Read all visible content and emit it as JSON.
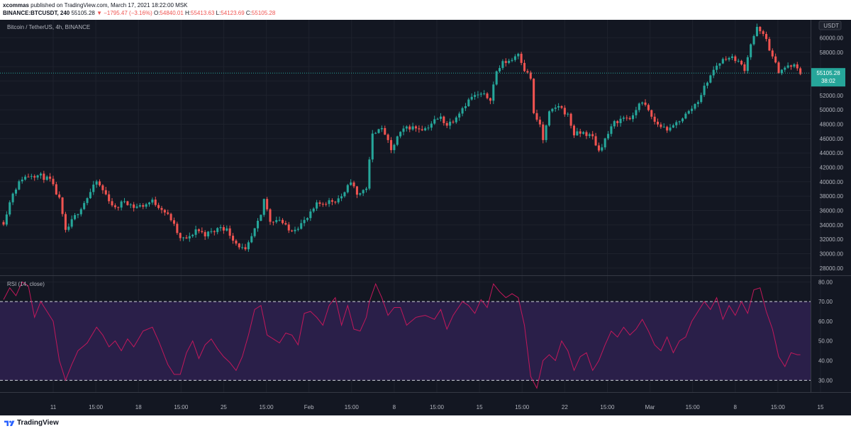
{
  "header": {
    "author": "xcommas",
    "published_text": "published on TradingView.com, March 17, 2021 18:22:00 MSK",
    "symbol": "BINANCE:BTCUSDT, 240",
    "last": "55105.28",
    "change": "−1795.47 (−3.16%)",
    "O": "54840.01",
    "H": "55413.63",
    "L": "54123.69",
    "C": "55105.28"
  },
  "footer": {
    "brand": "TradingView"
  },
  "colors": {
    "background": "#131722",
    "up": "#26a69a",
    "down": "#ef5350",
    "rsi_line": "#c2185b",
    "rsi_band": "#2a1f49",
    "grid": "#1e222d",
    "text": "#b2b5be",
    "last_price_tag": "#26a69a"
  },
  "chart_data": [
    {
      "type": "candlestick",
      "title": "Bitcoin / TetherUS, 4h, BINANCE",
      "currency_label": "USDT",
      "ylim": [
        27000,
        62500
      ],
      "y_ticks": [
        28000,
        30000,
        32000,
        34000,
        36000,
        38000,
        40000,
        42000,
        44000,
        46000,
        48000,
        50000,
        52000,
        54000,
        56000,
        58000,
        60000
      ],
      "y_top_partial_label": "6",
      "last_price": 55105.28,
      "last_price_label": "55105.28",
      "countdown": "38:02",
      "x_tick_labels": [
        "11",
        "15:00",
        "18",
        "15:00",
        "25",
        "15:00",
        "Feb",
        "15:00",
        "8",
        "15:00",
        "15",
        "15:00",
        "22",
        "15:00",
        "Mar",
        "15:00",
        "8",
        "15:00",
        "15"
      ],
      "close_path": [
        [
          0,
          34400
        ],
        [
          3,
          38500
        ],
        [
          6,
          40500
        ],
        [
          9,
          41000
        ],
        [
          12,
          40800
        ],
        [
          15,
          40200
        ],
        [
          18,
          37500
        ],
        [
          20,
          33000
        ],
        [
          22,
          34500
        ],
        [
          24,
          35800
        ],
        [
          27,
          37800
        ],
        [
          30,
          40000
        ],
        [
          33,
          38200
        ],
        [
          36,
          36200
        ],
        [
          39,
          37400
        ],
        [
          42,
          36500
        ],
        [
          45,
          36700
        ],
        [
          48,
          37300
        ],
        [
          51,
          36300
        ],
        [
          54,
          34800
        ],
        [
          57,
          32000
        ],
        [
          60,
          32200
        ],
        [
          62,
          33400
        ],
        [
          65,
          32700
        ],
        [
          68,
          33100
        ],
        [
          70,
          33800
        ],
        [
          72,
          33300
        ],
        [
          75,
          31500
        ],
        [
          78,
          30300
        ],
        [
          80,
          32300
        ],
        [
          83,
          35200
        ],
        [
          84,
          37600
        ],
        [
          86,
          34600
        ],
        [
          89,
          34800
        ],
        [
          92,
          33200
        ],
        [
          95,
          33800
        ],
        [
          98,
          34900
        ],
        [
          101,
          36800
        ],
        [
          104,
          37200
        ],
        [
          107,
          37400
        ],
        [
          110,
          38300
        ],
        [
          112,
          40200
        ],
        [
          114,
          38100
        ],
        [
          117,
          39200
        ],
        [
          119,
          46500
        ],
        [
          121,
          47600
        ],
        [
          123,
          46700
        ],
        [
          125,
          44200
        ],
        [
          127,
          46200
        ],
        [
          130,
          47600
        ],
        [
          133,
          47500
        ],
        [
          136,
          47400
        ],
        [
          139,
          48500
        ],
        [
          141,
          48900
        ],
        [
          143,
          47900
        ],
        [
          145,
          48600
        ],
        [
          148,
          50300
        ],
        [
          151,
          51800
        ],
        [
          154,
          52100
        ],
        [
          157,
          51600
        ],
        [
          159,
          55300
        ],
        [
          161,
          56500
        ],
        [
          164,
          57000
        ],
        [
          166,
          58000
        ],
        [
          168,
          55600
        ],
        [
          170,
          54400
        ],
        [
          171,
          49300
        ],
        [
          173,
          47900
        ],
        [
          174,
          45800
        ],
        [
          176,
          49500
        ],
        [
          179,
          50600
        ],
        [
          182,
          49200
        ],
        [
          184,
          46600
        ],
        [
          187,
          46800
        ],
        [
          190,
          46200
        ],
        [
          192,
          44300
        ],
        [
          194,
          45900
        ],
        [
          197,
          48200
        ],
        [
          200,
          48900
        ],
        [
          203,
          48900
        ],
        [
          205,
          51100
        ],
        [
          207,
          50500
        ],
        [
          210,
          48300
        ],
        [
          212,
          47700
        ],
        [
          215,
          47200
        ],
        [
          218,
          48600
        ],
        [
          221,
          49700
        ],
        [
          224,
          51300
        ],
        [
          227,
          54000
        ],
        [
          230,
          56200
        ],
        [
          233,
          57300
        ],
        [
          236,
          57100
        ],
        [
          239,
          55700
        ],
        [
          241,
          59200
        ],
        [
          243,
          61300
        ],
        [
          246,
          59800
        ],
        [
          248,
          57200
        ],
        [
          250,
          55400
        ],
        [
          253,
          56000
        ],
        [
          255,
          56100
        ],
        [
          257,
          55100
        ]
      ]
    },
    {
      "type": "line",
      "title": "RSI (14, close)",
      "ylim": [
        24,
        83
      ],
      "y_ticks": [
        30,
        40,
        50,
        60,
        70,
        80
      ],
      "band": [
        30,
        70
      ],
      "rsi_path": [
        [
          0,
          71
        ],
        [
          2,
          77
        ],
        [
          4,
          73
        ],
        [
          6,
          80
        ],
        [
          8,
          78
        ],
        [
          10,
          62
        ],
        [
          12,
          70
        ],
        [
          14,
          65
        ],
        [
          16,
          60
        ],
        [
          18,
          40
        ],
        [
          20,
          30
        ],
        [
          22,
          38
        ],
        [
          24,
          45
        ],
        [
          27,
          49
        ],
        [
          30,
          57
        ],
        [
          32,
          53
        ],
        [
          34,
          47
        ],
        [
          36,
          50
        ],
        [
          38,
          45
        ],
        [
          40,
          51
        ],
        [
          42,
          47
        ],
        [
          45,
          55
        ],
        [
          48,
          57
        ],
        [
          50,
          50
        ],
        [
          53,
          38
        ],
        [
          55,
          33
        ],
        [
          57,
          33
        ],
        [
          59,
          44
        ],
        [
          61,
          50
        ],
        [
          63,
          41
        ],
        [
          65,
          48
        ],
        [
          67,
          51
        ],
        [
          69,
          46
        ],
        [
          71,
          42
        ],
        [
          73,
          39
        ],
        [
          75,
          35
        ],
        [
          77,
          42
        ],
        [
          79,
          53
        ],
        [
          81,
          66
        ],
        [
          83,
          68
        ],
        [
          85,
          53
        ],
        [
          87,
          51
        ],
        [
          89,
          49
        ],
        [
          91,
          54
        ],
        [
          93,
          53
        ],
        [
          95,
          48
        ],
        [
          97,
          64
        ],
        [
          99,
          65
        ],
        [
          101,
          62
        ],
        [
          103,
          58
        ],
        [
          105,
          68
        ],
        [
          107,
          72
        ],
        [
          109,
          58
        ],
        [
          111,
          68
        ],
        [
          113,
          56
        ],
        [
          115,
          55
        ],
        [
          117,
          62
        ],
        [
          118,
          70
        ],
        [
          120,
          79
        ],
        [
          122,
          72
        ],
        [
          124,
          63
        ],
        [
          126,
          67
        ],
        [
          128,
          67
        ],
        [
          130,
          58
        ],
        [
          133,
          62
        ],
        [
          136,
          63
        ],
        [
          139,
          61
        ],
        [
          141,
          66
        ],
        [
          143,
          56
        ],
        [
          145,
          63
        ],
        [
          148,
          70
        ],
        [
          150,
          68
        ],
        [
          152,
          64
        ],
        [
          154,
          71
        ],
        [
          156,
          67
        ],
        [
          158,
          79
        ],
        [
          160,
          75
        ],
        [
          162,
          72
        ],
        [
          164,
          74
        ],
        [
          166,
          72
        ],
        [
          168,
          58
        ],
        [
          170,
          32
        ],
        [
          172,
          26
        ],
        [
          174,
          40
        ],
        [
          176,
          43
        ],
        [
          178,
          40
        ],
        [
          180,
          50
        ],
        [
          182,
          45
        ],
        [
          184,
          35
        ],
        [
          186,
          42
        ],
        [
          188,
          44
        ],
        [
          190,
          35
        ],
        [
          192,
          40
        ],
        [
          194,
          48
        ],
        [
          196,
          55
        ],
        [
          198,
          52
        ],
        [
          200,
          57
        ],
        [
          202,
          53
        ],
        [
          204,
          56
        ],
        [
          206,
          61
        ],
        [
          208,
          55
        ],
        [
          210,
          48
        ],
        [
          212,
          45
        ],
        [
          214,
          52
        ],
        [
          216,
          44
        ],
        [
          218,
          50
        ],
        [
          220,
          52
        ],
        [
          222,
          60
        ],
        [
          224,
          65
        ],
        [
          226,
          70
        ],
        [
          228,
          66
        ],
        [
          230,
          72
        ],
        [
          232,
          61
        ],
        [
          234,
          68
        ],
        [
          236,
          63
        ],
        [
          238,
          70
        ],
        [
          240,
          64
        ],
        [
          242,
          76
        ],
        [
          244,
          77
        ],
        [
          246,
          65
        ],
        [
          248,
          56
        ],
        [
          250,
          42
        ],
        [
          252,
          37
        ],
        [
          254,
          44
        ],
        [
          256,
          43
        ]
      ]
    }
  ]
}
